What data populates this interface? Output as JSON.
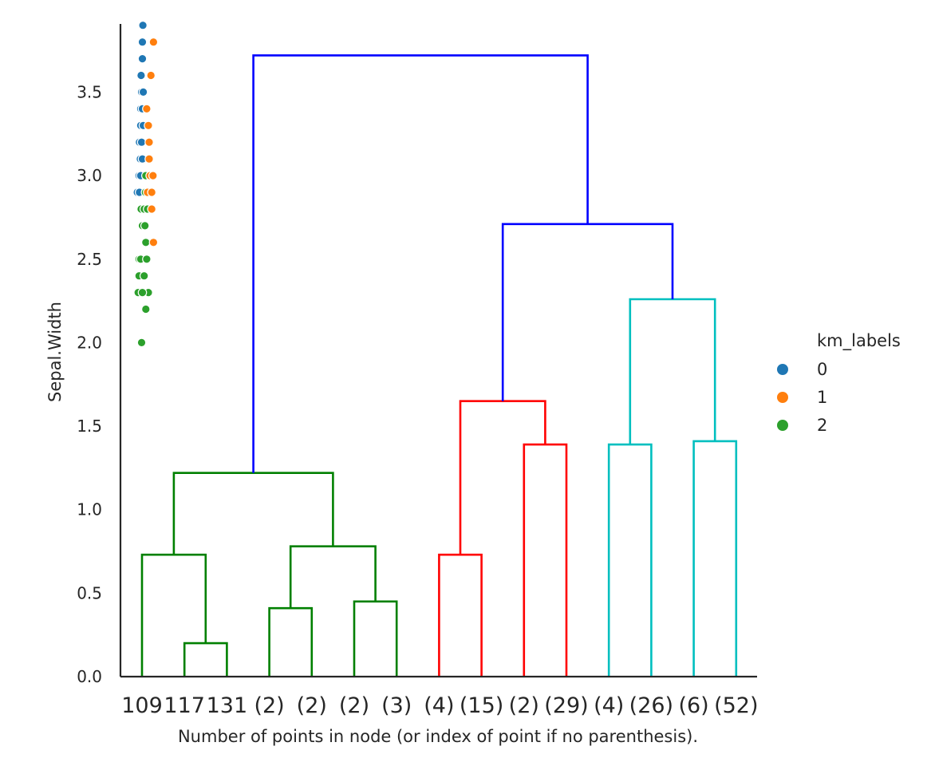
{
  "chart_data": {
    "type": "dendrogram",
    "xlabel": "Number of points in node (or index of point if no parenthesis).",
    "ylabel": "Sepal.Width",
    "ylim": [
      0.0,
      3.9
    ],
    "y_ticks": [
      0.0,
      0.5,
      1.0,
      1.5,
      2.0,
      2.5,
      3.0,
      3.5
    ],
    "y_tick_labels": [
      "0.0",
      "0.5",
      "1.0",
      "1.5",
      "2.0",
      "2.5",
      "3.0",
      "3.5"
    ],
    "leaf_labels": [
      "109",
      "117",
      "131",
      "(2)",
      "(2)",
      "(2)",
      "(3)",
      "(4)",
      "(15)",
      "(2)",
      "(29)",
      "(4)",
      "(26)",
      "(6)",
      "(52)"
    ],
    "colors": {
      "green": "#008000",
      "red": "#ff0000",
      "cyan": "#00bfbf",
      "blue": "#0000ff",
      "km0": "#1f77b4",
      "km1": "#ff7f0e",
      "km2": "#2ca02c",
      "axis": "#262626"
    },
    "links": [
      {
        "x": [
          0,
          0,
          1.5,
          1.5
        ],
        "y": [
          0,
          0.73,
          0.73,
          0.2
        ],
        "color": "green"
      },
      {
        "x": [
          1,
          1,
          2,
          2
        ],
        "y": [
          0,
          0.2,
          0.2,
          0
        ],
        "color": "green"
      },
      {
        "x": [
          3,
          3,
          4,
          4
        ],
        "y": [
          0,
          0.41,
          0.41,
          0
        ],
        "color": "green"
      },
      {
        "x": [
          5,
          5,
          6,
          6
        ],
        "y": [
          0,
          0.45,
          0.45,
          0
        ],
        "color": "green"
      },
      {
        "x": [
          3.5,
          3.5,
          5.5,
          5.5
        ],
        "y": [
          0.41,
          0.78,
          0.78,
          0.45
        ],
        "color": "green"
      },
      {
        "x": [
          0.75,
          0.75,
          4.5,
          4.5
        ],
        "y": [
          0.73,
          1.22,
          1.22,
          0.78
        ],
        "color": "green"
      },
      {
        "x": [
          7,
          7,
          8,
          8
        ],
        "y": [
          0,
          0.73,
          0.73,
          0
        ],
        "color": "red"
      },
      {
        "x": [
          9,
          9,
          10,
          10
        ],
        "y": [
          0,
          1.39,
          1.39,
          0
        ],
        "color": "red"
      },
      {
        "x": [
          7.5,
          7.5,
          9.5,
          9.5
        ],
        "y": [
          0.73,
          1.65,
          1.65,
          1.39
        ],
        "color": "red"
      },
      {
        "x": [
          11,
          11,
          12,
          12
        ],
        "y": [
          0,
          1.39,
          1.39,
          0
        ],
        "color": "cyan"
      },
      {
        "x": [
          13,
          13,
          14,
          14
        ],
        "y": [
          0,
          1.41,
          1.41,
          0
        ],
        "color": "cyan"
      },
      {
        "x": [
          11.5,
          11.5,
          13.5,
          13.5
        ],
        "y": [
          1.39,
          2.26,
          2.26,
          1.41
        ],
        "color": "cyan"
      },
      {
        "x": [
          8.5,
          8.5,
          12.5,
          12.5
        ],
        "y": [
          1.65,
          2.71,
          2.71,
          2.26
        ],
        "color": "blue"
      },
      {
        "x": [
          2.625,
          2.625,
          10.5,
          10.5
        ],
        "y": [
          1.22,
          3.72,
          3.72,
          2.71
        ],
        "color": "blue"
      }
    ],
    "scatter": {
      "x_offset_units": "leaf",
      "points": [
        {
          "x": 0.02,
          "y": 3.9,
          "label": 0
        },
        {
          "x": 0.01,
          "y": 3.8,
          "label": 0
        },
        {
          "x": 0.27,
          "y": 3.8,
          "label": 1
        },
        {
          "x": 0.01,
          "y": 3.7,
          "label": 0
        },
        {
          "x": -0.02,
          "y": 3.6,
          "label": 0
        },
        {
          "x": 0.21,
          "y": 3.6,
          "label": 1
        },
        {
          "x": -0.01,
          "y": 3.5,
          "label": 0
        },
        {
          "x": 0.03,
          "y": 3.5,
          "label": 0
        },
        {
          "x": -0.03,
          "y": 3.4,
          "label": 0
        },
        {
          "x": 0.01,
          "y": 3.4,
          "label": 0
        },
        {
          "x": 0.11,
          "y": 3.4,
          "label": 1
        },
        {
          "x": -0.03,
          "y": 3.3,
          "label": 0
        },
        {
          "x": 0.03,
          "y": 3.3,
          "label": 0
        },
        {
          "x": 0.15,
          "y": 3.3,
          "label": 1
        },
        {
          "x": -0.06,
          "y": 3.2,
          "label": 0
        },
        {
          "x": -0.01,
          "y": 3.2,
          "label": 0
        },
        {
          "x": 0.17,
          "y": 3.2,
          "label": 1
        },
        {
          "x": -0.04,
          "y": 3.1,
          "label": 0
        },
        {
          "x": 0.01,
          "y": 3.1,
          "label": 0
        },
        {
          "x": 0.17,
          "y": 3.1,
          "label": 1
        },
        {
          "x": -0.07,
          "y": 3.0,
          "label": 0
        },
        {
          "x": -0.03,
          "y": 3.0,
          "label": 0
        },
        {
          "x": 0.09,
          "y": 3.0,
          "label": 2
        },
        {
          "x": 0.19,
          "y": 3.0,
          "label": 1
        },
        {
          "x": 0.26,
          "y": 3.0,
          "label": 1
        },
        {
          "x": -0.11,
          "y": 2.9,
          "label": 0
        },
        {
          "x": -0.06,
          "y": 2.9,
          "label": 0
        },
        {
          "x": 0.08,
          "y": 2.9,
          "label": 2
        },
        {
          "x": 0.13,
          "y": 2.9,
          "label": 1
        },
        {
          "x": 0.23,
          "y": 2.9,
          "label": 1
        },
        {
          "x": -0.02,
          "y": 2.8,
          "label": 2
        },
        {
          "x": 0.05,
          "y": 2.8,
          "label": 2
        },
        {
          "x": 0.13,
          "y": 2.8,
          "label": 2
        },
        {
          "x": 0.23,
          "y": 2.8,
          "label": 1
        },
        {
          "x": 0.01,
          "y": 2.7,
          "label": 2
        },
        {
          "x": 0.07,
          "y": 2.7,
          "label": 2
        },
        {
          "x": 0.09,
          "y": 2.6,
          "label": 2
        },
        {
          "x": 0.27,
          "y": 2.6,
          "label": 1
        },
        {
          "x": -0.07,
          "y": 2.5,
          "label": 2
        },
        {
          "x": -0.03,
          "y": 2.5,
          "label": 2
        },
        {
          "x": 0.11,
          "y": 2.5,
          "label": 2
        },
        {
          "x": -0.07,
          "y": 2.4,
          "label": 2
        },
        {
          "x": 0.05,
          "y": 2.4,
          "label": 2
        },
        {
          "x": -0.09,
          "y": 2.3,
          "label": 2
        },
        {
          "x": 0.11,
          "y": 2.3,
          "label": 2
        },
        {
          "x": 0.15,
          "y": 2.3,
          "label": 2
        },
        {
          "x": 0.01,
          "y": 2.3,
          "label": 2
        },
        {
          "x": 0.09,
          "y": 2.2,
          "label": 2
        },
        {
          "x": -0.01,
          "y": 2.0,
          "label": 2
        }
      ]
    },
    "legend": {
      "title": "km_labels",
      "placement": "right",
      "entries": [
        {
          "label": "0",
          "color": "#1f77b4"
        },
        {
          "label": "1",
          "color": "#ff7f0e"
        },
        {
          "label": "2",
          "color": "#2ca02c"
        }
      ]
    },
    "grid": false
  }
}
